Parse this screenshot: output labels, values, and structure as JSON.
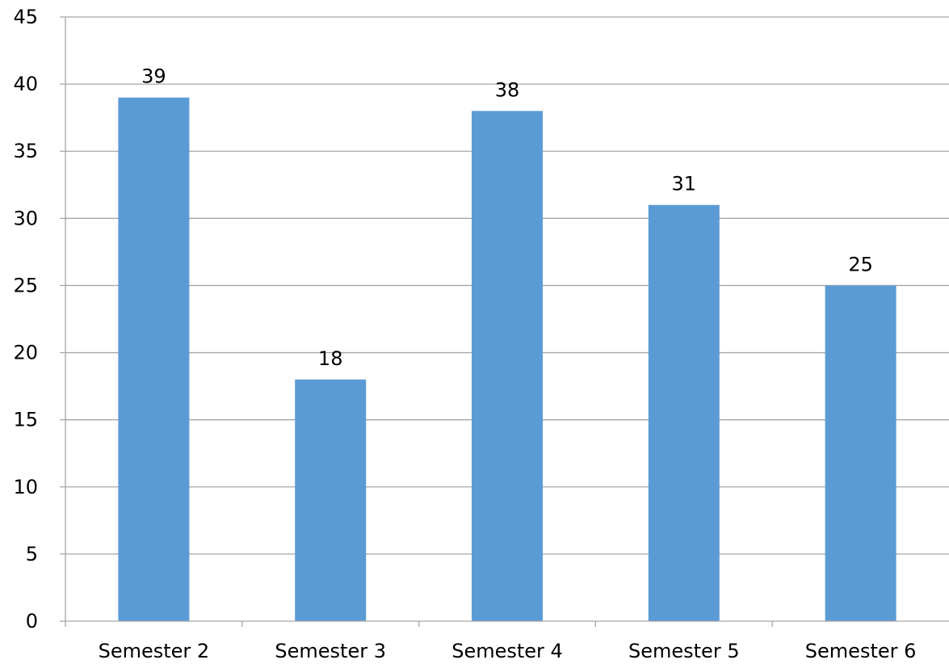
{
  "chart_data": {
    "type": "bar",
    "categories": [
      "Semester 2",
      "Semester 3",
      "Semester 4",
      "Semester 5",
      "Semester 6"
    ],
    "values": [
      39,
      18,
      38,
      31,
      25
    ],
    "data_labels": [
      "39",
      "18",
      "38",
      "31",
      "25"
    ],
    "y_ticks": [
      "0",
      "5",
      "10",
      "15",
      "20",
      "25",
      "30",
      "35",
      "40",
      "45"
    ],
    "ylim": [
      0,
      45
    ],
    "grid": true,
    "legend": "none",
    "title": "",
    "xlabel": "",
    "ylabel": "",
    "bar_color": "#5b9bd5",
    "grid_color": "#a6a6a6"
  }
}
